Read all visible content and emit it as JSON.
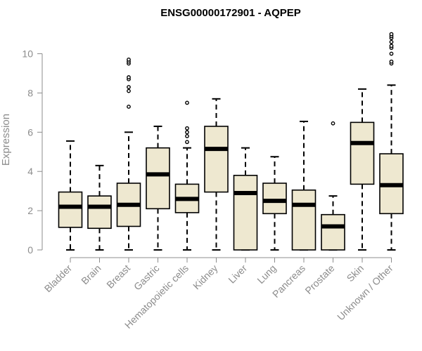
{
  "chart_data": {
    "type": "boxplot",
    "title": "ENSG00000172901 - AQPEP",
    "xlabel": "",
    "ylabel": "Expression",
    "ylim": [
      0,
      11.2
    ],
    "yticks": [
      0,
      2,
      4,
      6,
      8,
      10
    ],
    "box_color": "#EEE8D0",
    "categories": [
      "Bladder",
      "Brain",
      "Breast",
      "Gastric",
      "Hematopoietic cells",
      "Kidney",
      "Liver",
      "Lung",
      "Pancreas",
      "Prostate",
      "Skin",
      "Unknown / Other"
    ],
    "boxes": [
      {
        "min": 0,
        "q1": 1.15,
        "median": 2.2,
        "q3": 2.95,
        "max": 5.55,
        "outliers": []
      },
      {
        "min": 0,
        "q1": 1.1,
        "median": 2.2,
        "q3": 2.75,
        "max": 4.3,
        "outliers": []
      },
      {
        "min": 0,
        "q1": 1.2,
        "median": 2.3,
        "q3": 3.4,
        "max": 6.0,
        "outliers": [
          7.3,
          8.1,
          8.3,
          8.7,
          8.8,
          9.5,
          9.6,
          9.7
        ]
      },
      {
        "min": 0,
        "q1": 2.1,
        "median": 3.85,
        "q3": 5.2,
        "max": 6.3,
        "outliers": []
      },
      {
        "min": 0,
        "q1": 1.9,
        "median": 2.6,
        "q3": 3.35,
        "max": 5.2,
        "outliers": [
          5.5,
          5.8,
          6.0,
          6.2,
          7.5
        ]
      },
      {
        "min": 0,
        "q1": 2.95,
        "median": 5.15,
        "q3": 6.3,
        "max": 7.7,
        "outliers": []
      },
      {
        "min": 0,
        "q1": 0,
        "median": 2.9,
        "q3": 3.8,
        "max": 5.2,
        "outliers": []
      },
      {
        "min": 0,
        "q1": 1.85,
        "median": 2.5,
        "q3": 3.4,
        "max": 4.75,
        "outliers": []
      },
      {
        "min": 0,
        "q1": 0,
        "median": 2.3,
        "q3": 3.05,
        "max": 6.55,
        "outliers": []
      },
      {
        "min": 0,
        "q1": 0,
        "median": 1.2,
        "q3": 1.8,
        "max": 2.75,
        "outliers": [
          6.45
        ]
      },
      {
        "min": 0,
        "q1": 3.35,
        "median": 5.45,
        "q3": 6.5,
        "max": 8.2,
        "outliers": []
      },
      {
        "min": 0,
        "q1": 1.85,
        "median": 3.3,
        "q3": 4.9,
        "max": 8.4,
        "outliers": [
          9.5,
          9.6,
          10.0,
          10.3,
          10.4,
          10.6,
          10.8,
          10.9,
          11.0
        ]
      }
    ]
  }
}
